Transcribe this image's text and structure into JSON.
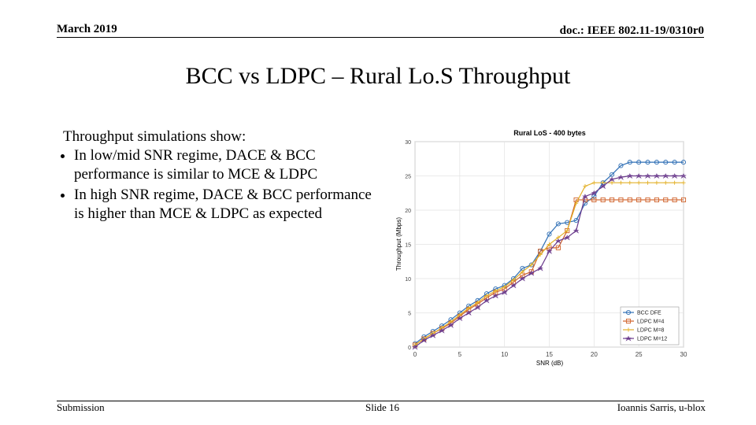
{
  "header": {
    "date": "March 2019",
    "doc": "doc.: IEEE 802.11-19/0310r0"
  },
  "title": "BCC vs LDPC – Rural Lo.S Throughput",
  "body": {
    "intro": "Throughput simulations show:",
    "bullets": [
      "In low/mid SNR regime, DACE & BCC performance is similar to MCE & LDPC",
      "In high SNR regime, DACE & BCC performance is higher than MCE & LDPC as expected"
    ]
  },
  "footer": {
    "left": "Submission",
    "center": "Slide 16",
    "right": "Ioannis Sarris, u-blox"
  },
  "chart_data": {
    "type": "line",
    "title": "Rural LoS - 400 bytes",
    "x_label": "SNR (dB)",
    "y_label": "Throughput (Mbps)",
    "x": [
      0,
      1,
      2,
      3,
      4,
      5,
      6,
      7,
      8,
      9,
      10,
      11,
      12,
      13,
      14,
      15,
      16,
      17,
      18,
      19,
      20,
      21,
      22,
      23,
      24,
      25,
      26,
      27,
      28,
      29,
      30
    ],
    "xlim": [
      0,
      30
    ],
    "xticks": [
      0,
      5,
      10,
      15,
      20,
      25,
      30
    ],
    "ylim": [
      0,
      30
    ],
    "yticks": [
      0,
      5,
      10,
      15,
      20,
      25,
      30
    ],
    "grid": true,
    "legend": "lower right",
    "series": [
      {
        "name": "BCC DFE",
        "color": "#2f6fb5",
        "marker": "circle",
        "values": [
          0.5,
          1.5,
          2.3,
          3.1,
          4,
          5,
          6,
          6.8,
          7.8,
          8.5,
          9,
          10,
          11.5,
          12,
          14,
          16.5,
          18,
          18.2,
          18.5,
          21,
          22,
          24,
          25.2,
          26.5,
          27,
          27,
          27,
          27,
          27,
          27,
          27
        ]
      },
      {
        "name": "LDPC M=4",
        "color": "#d0622a",
        "marker": "square",
        "values": [
          0.3,
          1.2,
          2,
          2.7,
          3.5,
          4.5,
          5.5,
          6.3,
          7.2,
          8,
          8.5,
          9.5,
          10.5,
          11,
          14,
          14.5,
          14.5,
          17,
          21.5,
          21.5,
          21.5,
          21.5,
          21.5,
          21.5,
          21.5,
          21.5,
          21.5,
          21.5,
          21.5,
          21.5,
          21.5
        ]
      },
      {
        "name": "LDPC M=8",
        "color": "#e3b12a",
        "marker": "cross",
        "values": [
          0.3,
          1.2,
          2,
          2.8,
          3.7,
          4.7,
          5.7,
          6.5,
          7.5,
          8.2,
          8.8,
          9.8,
          11,
          12,
          13.5,
          15,
          16,
          17,
          21,
          23.5,
          24,
          24,
          24,
          24,
          24,
          24,
          24,
          24,
          24,
          24,
          24
        ]
      },
      {
        "name": "LDPC M=12",
        "color": "#6a3a8c",
        "marker": "star",
        "values": [
          0,
          1,
          1.7,
          2.4,
          3.2,
          4.2,
          5,
          5.8,
          6.8,
          7.5,
          8,
          9,
          10,
          10.8,
          11.5,
          14,
          15.5,
          16,
          17,
          22,
          22.5,
          23.5,
          24.5,
          24.8,
          25,
          25,
          25,
          25,
          25,
          25,
          25
        ]
      }
    ]
  }
}
